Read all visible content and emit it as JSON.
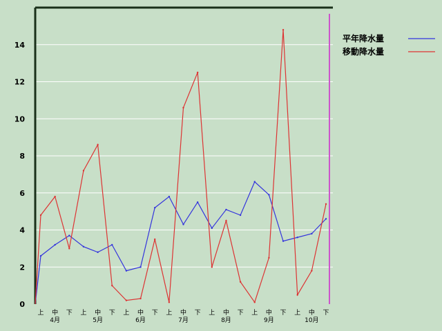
{
  "chart_data": {
    "type": "line",
    "title": "",
    "xlabel": "",
    "ylabel": "",
    "ylim": [
      0,
      16
    ],
    "yticks": [
      0,
      2,
      4,
      6,
      8,
      10,
      12,
      14
    ],
    "grid": "horizontal",
    "legend": "top-right",
    "x_period_labels": [
      "上",
      "中",
      "下",
      "上",
      "中",
      "下",
      "上",
      "中",
      "下",
      "上",
      "中",
      "下",
      "上",
      "中",
      "下",
      "上",
      "中",
      "下",
      "上",
      "中",
      "下"
    ],
    "x_month_labels": [
      "4月",
      "5月",
      "6月",
      "7月",
      "8月",
      "9月",
      "10月"
    ],
    "x": [
      0,
      1,
      2,
      3,
      4,
      5,
      6,
      7,
      8,
      9,
      10,
      11,
      12,
      13,
      14,
      15,
      16,
      17,
      18,
      19,
      20
    ],
    "series": [
      {
        "name": "平年降水量",
        "color": "#3333dd",
        "values": [
          2.6,
          3.2,
          3.7,
          3.1,
          2.8,
          3.2,
          1.8,
          2.0,
          5.2,
          5.8,
          4.3,
          5.5,
          4.1,
          5.1,
          4.8,
          6.6,
          5.9,
          3.4,
          3.6,
          3.8,
          4.6
        ]
      },
      {
        "name": "移動降水量",
        "color": "#dd3333",
        "values": [
          4.8,
          5.8,
          3.0,
          7.2,
          8.6,
          1.0,
          0.2,
          0.3,
          3.5,
          0.1,
          10.6,
          12.5,
          2.0,
          4.5,
          1.2,
          0.1,
          2.5,
          14.8,
          0.5,
          1.8,
          5.4
        ]
      }
    ],
    "colors": {
      "background": "#c8dfc8",
      "grid": "#ffffff",
      "frame": "#1a301a",
      "marker_line": "#cc55cc"
    }
  }
}
